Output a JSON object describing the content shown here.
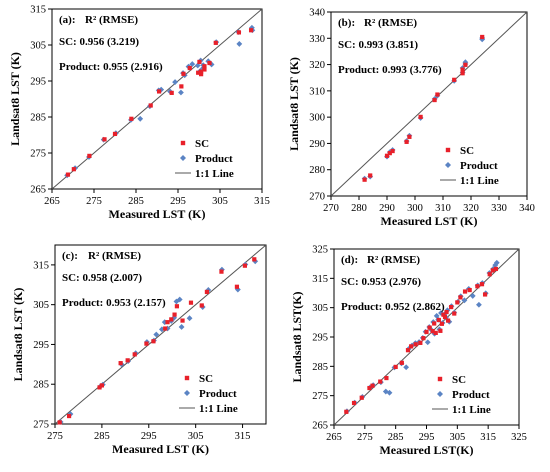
{
  "figure": {
    "panels": [
      {
        "label": "(a):",
        "metric_header": "R² (RMSE)",
        "sc_stat": "SC: 0.956 (3.219)",
        "product_stat": "Product: 0.955 (2.916)",
        "xlabel": "Measured LST (K)",
        "ylabel": "Landsat8 LST (K)"
      },
      {
        "label": "(b):",
        "metric_header": "R² (RMSE)",
        "sc_stat": "SC: 0.993 (3.851)",
        "product_stat": "Product: 0.993 (3.776)",
        "xlabel": "Measured LST (K)",
        "ylabel": "Landsat8 LST (K)"
      },
      {
        "label": "(c):",
        "metric_header": "R² (RMSE)",
        "sc_stat": "SC: 0.958 (2.007)",
        "product_stat": "Product: 0.953 (2.157)",
        "xlabel": "Measured LST (K)",
        "ylabel": "Landsat8 LST (K)"
      },
      {
        "label": "(d):",
        "metric_header": "R² (RMSE)",
        "sc_stat": "SC: 0.953 (2.976)",
        "product_stat": "Product: 0.952 (2.862)",
        "xlabel": "Measured LST(K)",
        "ylabel": "Landsat8 LST(K)"
      }
    ],
    "legend": {
      "sc": "SC",
      "product": "Product",
      "line": "1:1 Line"
    }
  },
  "colors": {
    "sc": "#e8202a",
    "product": "#5b84c4",
    "line": "#555555",
    "frame": "#000000"
  },
  "chart_data": [
    {
      "type": "scatter",
      "title": "",
      "xlabel": "Measured LST (K)",
      "ylabel": "Landsat8 LST (K)",
      "xlim": [
        265,
        315
      ],
      "ylim": [
        265,
        315
      ],
      "xticks": [
        265,
        275,
        285,
        295,
        305,
        315
      ],
      "yticks": [
        265,
        275,
        285,
        295,
        305,
        315
      ],
      "grid": false,
      "legend_position": "bottom-right",
      "series": [
        {
          "name": "SC",
          "points": [
            [
              268.8,
              269.0
            ],
            [
              270.2,
              270.5
            ],
            [
              273.9,
              274.2
            ],
            [
              277.5,
              278.8
            ],
            [
              280.0,
              280.3
            ],
            [
              283.9,
              284.5
            ],
            [
              288.5,
              288.2
            ],
            [
              290.5,
              292.1
            ],
            [
              293.5,
              291.7
            ],
            [
              295.8,
              293.5
            ],
            [
              296.3,
              297.0
            ],
            [
              297.8,
              298.6
            ],
            [
              299.8,
              297.3
            ],
            [
              300.1,
              300.3
            ],
            [
              300.5,
              297.6
            ],
            [
              300.5,
              296.9
            ],
            [
              301.3,
              298.2
            ],
            [
              302.5,
              300.0
            ],
            [
              304.0,
              305.6
            ],
            [
              309.5,
              308.5
            ],
            [
              312.4,
              309.1
            ],
            [
              301.3,
              299.1
            ]
          ]
        },
        {
          "name": "Product",
          "points": [
            [
              268.6,
              268.8
            ],
            [
              270.5,
              270.8
            ],
            [
              273.8,
              273.9
            ],
            [
              277.3,
              278.7
            ],
            [
              280.2,
              280.5
            ],
            [
              283.8,
              284.2
            ],
            [
              286.0,
              284.5
            ],
            [
              288.3,
              288.0
            ],
            [
              290.4,
              292.4
            ],
            [
              291.0,
              292.6
            ],
            [
              293.1,
              292.1
            ],
            [
              294.3,
              294.7
            ],
            [
              295.7,
              291.8
            ],
            [
              296.2,
              297.2
            ],
            [
              297.5,
              299.0
            ],
            [
              298.4,
              299.7
            ],
            [
              299.7,
              299.3
            ],
            [
              300.4,
              300.7
            ],
            [
              300.3,
              297.8
            ],
            [
              301.0,
              298.6
            ],
            [
              302.2,
              300.5
            ],
            [
              303.0,
              299.6
            ],
            [
              304.1,
              305.8
            ],
            [
              309.4,
              308.6
            ],
            [
              309.6,
              305.3
            ],
            [
              312.6,
              309.8
            ],
            [
              312.7,
              309.1
            ],
            [
              301.0,
              299.4
            ],
            [
              296.6,
              296.6
            ]
          ]
        },
        {
          "name": "1:1 Line",
          "points": [
            [
              265,
              265
            ],
            [
              315,
              315
            ]
          ]
        }
      ]
    },
    {
      "type": "scatter",
      "title": "",
      "xlabel": "Measured LST (K)",
      "ylabel": "Landsat8 LST (K)",
      "xlim": [
        270,
        340
      ],
      "ylim": [
        270,
        340
      ],
      "xticks": [
        270,
        280,
        290,
        300,
        310,
        320,
        330,
        340
      ],
      "yticks": [
        270,
        280,
        290,
        300,
        310,
        320,
        330,
        340
      ],
      "grid": false,
      "legend_position": "bottom-right",
      "series": [
        {
          "name": "SC",
          "points": [
            [
              282.0,
              276.2
            ],
            [
              284.0,
              277.8
            ],
            [
              290.0,
              285.3
            ],
            [
              291.0,
              286.3
            ],
            [
              292.0,
              287.1
            ],
            [
              297.0,
              290.6
            ],
            [
              298.0,
              292.5
            ],
            [
              302.0,
              300.1
            ],
            [
              307.0,
              306.5
            ],
            [
              308.0,
              308.6
            ],
            [
              314.0,
              314.2
            ],
            [
              317.0,
              316.7
            ],
            [
              317.0,
              318.1
            ],
            [
              318.0,
              319.9
            ],
            [
              324.0,
              330.5
            ]
          ]
        },
        {
          "name": "Product",
          "points": [
            [
              282.0,
              276.6
            ],
            [
              284.0,
              277.4
            ],
            [
              290.0,
              285.0
            ],
            [
              291.0,
              286.7
            ],
            [
              292.0,
              287.5
            ],
            [
              297.0,
              290.9
            ],
            [
              298.0,
              292.9
            ],
            [
              302.0,
              299.7
            ],
            [
              307.0,
              306.9
            ],
            [
              308.0,
              308.2
            ],
            [
              314.0,
              313.8
            ],
            [
              317.0,
              317.0
            ],
            [
              317.0,
              318.7
            ],
            [
              318.0,
              320.2
            ],
            [
              318.0,
              320.9
            ],
            [
              324.0,
              330.1
            ],
            [
              324.0,
              329.6
            ]
          ]
        },
        {
          "name": "1:1 Line",
          "points": [
            [
              270,
              270
            ],
            [
              340,
              340
            ]
          ]
        }
      ]
    },
    {
      "type": "scatter",
      "title": "",
      "xlabel": "Measured LST (K)",
      "ylabel": "Landsat8 LST (K)",
      "xlim": [
        275,
        320
      ],
      "ylim": [
        275,
        320
      ],
      "xticks": [
        275,
        285,
        295,
        305,
        315
      ],
      "yticks": [
        275,
        285,
        295,
        305,
        315
      ],
      "grid": false,
      "legend_position": "bottom-right",
      "series": [
        {
          "name": "SC",
          "points": [
            [
              276.0,
              275.4
            ],
            [
              278.0,
              277.0
            ],
            [
              284.5,
              284.2
            ],
            [
              285.0,
              284.7
            ],
            [
              289.0,
              290.3
            ],
            [
              290.5,
              291.0
            ],
            [
              292.0,
              292.5
            ],
            [
              294.5,
              295.2
            ],
            [
              296.0,
              295.8
            ],
            [
              298.5,
              299.0
            ],
            [
              299.0,
              300.6
            ],
            [
              299.8,
              301.3
            ],
            [
              300.5,
              302.5
            ],
            [
              301.0,
              304.6
            ],
            [
              302.2,
              301.0
            ],
            [
              304.0,
              305.5
            ],
            [
              306.3,
              304.8
            ],
            [
              307.4,
              308.2
            ],
            [
              310.5,
              313.3
            ],
            [
              313.8,
              309.5
            ],
            [
              315.5,
              314.8
            ],
            [
              317.5,
              316.4
            ]
          ]
        },
        {
          "name": "Product",
          "points": [
            [
              276.2,
              275.5
            ],
            [
              278.3,
              277.5
            ],
            [
              284.7,
              284.5
            ],
            [
              285.2,
              284.9
            ],
            [
              289.2,
              290.0
            ],
            [
              290.6,
              290.8
            ],
            [
              292.2,
              292.8
            ],
            [
              294.6,
              295.6
            ],
            [
              296.1,
              296.0
            ],
            [
              296.6,
              297.5
            ],
            [
              297.8,
              298.8
            ],
            [
              298.4,
              300.6
            ],
            [
              299.0,
              299.0
            ],
            [
              299.8,
              300.9
            ],
            [
              300.4,
              301.7
            ],
            [
              300.9,
              305.8
            ],
            [
              301.6,
              306.3
            ],
            [
              302.0,
              299.4
            ],
            [
              303.7,
              301.6
            ],
            [
              306.5,
              304.4
            ],
            [
              307.7,
              308.7
            ],
            [
              310.6,
              313.8
            ],
            [
              314.0,
              308.8
            ],
            [
              315.6,
              315.1
            ],
            [
              317.7,
              315.9
            ]
          ]
        },
        {
          "name": "1:1 Line",
          "points": [
            [
              275,
              275
            ],
            [
              320,
              320
            ]
          ]
        }
      ]
    },
    {
      "type": "scatter",
      "title": "",
      "xlabel": "Measured LST(K)",
      "ylabel": "Landsat8 LST(K)",
      "xlim": [
        265,
        325
      ],
      "ylim": [
        265,
        325
      ],
      "xticks": [
        265,
        275,
        285,
        295,
        305,
        315,
        325
      ],
      "yticks": [
        265,
        275,
        285,
        295,
        305,
        315,
        325
      ],
      "grid": false,
      "legend_position": "bottom-right",
      "series": [
        {
          "name": "SC",
          "points": [
            [
              269.0,
              269.5
            ],
            [
              271.5,
              272.5
            ],
            [
              274.0,
              274.3
            ],
            [
              276.5,
              277.6
            ],
            [
              277.5,
              278.4
            ],
            [
              280.0,
              279.8
            ],
            [
              282.0,
              281.0
            ],
            [
              285.0,
              284.8
            ],
            [
              287.0,
              286.2
            ],
            [
              289.0,
              290.5
            ],
            [
              290.0,
              291.8
            ],
            [
              291.5,
              292.5
            ],
            [
              293.0,
              293.0
            ],
            [
              294.0,
              294.6
            ],
            [
              295.0,
              296.7
            ],
            [
              296.0,
              298.2
            ],
            [
              297.0,
              297.0
            ],
            [
              297.5,
              299.6
            ],
            [
              298.0,
              296.4
            ],
            [
              299.0,
              300.8
            ],
            [
              299.5,
              297.1
            ],
            [
              300.0,
              299.5
            ],
            [
              300.5,
              302.6
            ],
            [
              301.0,
              301.8
            ],
            [
              301.5,
              303.5
            ],
            [
              302.0,
              300.6
            ],
            [
              303.0,
              305.2
            ],
            [
              304.0,
              303.0
            ],
            [
              305.0,
              306.8
            ],
            [
              306.0,
              308.5
            ],
            [
              307.5,
              310.5
            ],
            [
              309.0,
              311.0
            ],
            [
              311.5,
              312.3
            ],
            [
              313.0,
              313.0
            ],
            [
              314.0,
              309.5
            ],
            [
              315.5,
              316.4
            ],
            [
              316.5,
              317.7
            ],
            [
              317.5,
              318.2
            ]
          ]
        },
        {
          "name": "Product",
          "points": [
            [
              269.2,
              269.7
            ],
            [
              271.7,
              272.6
            ],
            [
              274.2,
              274.6
            ],
            [
              276.7,
              277.8
            ],
            [
              277.7,
              278.6
            ],
            [
              280.2,
              279.6
            ],
            [
              281.8,
              276.4
            ],
            [
              283.0,
              276.0
            ],
            [
              284.6,
              284.6
            ],
            [
              286.9,
              286.0
            ],
            [
              288.4,
              284.7
            ],
            [
              289.2,
              290.9
            ],
            [
              290.3,
              292.1
            ],
            [
              291.4,
              292.9
            ],
            [
              292.6,
              293.3
            ],
            [
              293.8,
              294.7
            ],
            [
              294.7,
              296.8
            ],
            [
              295.4,
              293.2
            ],
            [
              295.9,
              298.4
            ],
            [
              296.6,
              297.4
            ],
            [
              297.2,
              300.1
            ],
            [
              297.6,
              296.1
            ],
            [
              298.3,
              302.2
            ],
            [
              298.8,
              300.9
            ],
            [
              299.2,
              297.6
            ],
            [
              299.7,
              303.2
            ],
            [
              300.2,
              299.8
            ],
            [
              300.8,
              302.7
            ],
            [
              301.3,
              301.6
            ],
            [
              301.8,
              304.1
            ],
            [
              302.4,
              300.2
            ],
            [
              303.1,
              305.5
            ],
            [
              304.0,
              303.3
            ],
            [
              305.2,
              307.0
            ],
            [
              306.1,
              308.9
            ],
            [
              307.3,
              307.5
            ],
            [
              308.7,
              311.4
            ],
            [
              310.0,
              309.0
            ],
            [
              311.6,
              312.6
            ],
            [
              313.1,
              313.4
            ],
            [
              314.2,
              309.9
            ],
            [
              315.4,
              316.8
            ],
            [
              316.6,
              318.2
            ],
            [
              317.3,
              319.5
            ],
            [
              317.8,
              320.3
            ],
            [
              312.0,
              306.0
            ]
          ]
        },
        {
          "name": "1:1 Line",
          "points": [
            [
              265,
              265
            ],
            [
              325,
              325
            ]
          ]
        }
      ]
    }
  ]
}
